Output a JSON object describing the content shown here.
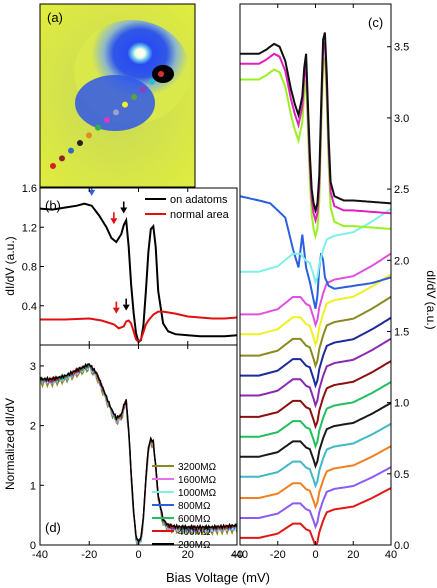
{
  "figure": {
    "shared_xlabel": "Bias Voltage (mV)",
    "shared_xticks": [
      "-40",
      "-20",
      "0",
      "20",
      "40"
    ]
  },
  "chart_data": [
    {
      "panel": "(a)",
      "type": "heatmap",
      "description_colors": {
        "background": "#d9e84a",
        "ring": "#2a4bf0",
        "center": "#ffffff",
        "core": "#000000"
      },
      "marker_colors": [
        "#d6201f",
        "#8b2525",
        "#2f6bc4",
        "#222222",
        "#e08a1f",
        "#2fb14a",
        "#d938c6",
        "#a0a0d0",
        "#f0f030",
        "#5f9f3f",
        "#9a3ab8",
        "#28c0c8",
        "#e03030"
      ]
    },
    {
      "panel": "(b)",
      "type": "line",
      "xlabel": "",
      "ylabel": "dI/dV (a.u.)",
      "xlim": [
        -40,
        40
      ],
      "ylim": [
        0.0,
        1.6
      ],
      "yticks": [
        "0.4",
        "0.8",
        "1.2",
        "1.6"
      ],
      "legend": "top-right",
      "series": [
        {
          "name": "on adatoms",
          "color": "#000000",
          "x": [
            -40,
            -35,
            -30,
            -25,
            -22,
            -19,
            -16,
            -13,
            -11,
            -9,
            -7,
            -6,
            -5,
            -4,
            -3,
            -2,
            -1,
            0,
            1,
            2,
            3,
            4,
            5,
            6,
            7,
            8,
            10,
            12,
            15,
            20,
            25,
            30,
            35,
            40
          ],
          "y": [
            1.39,
            1.38,
            1.4,
            1.42,
            1.44,
            1.42,
            1.32,
            1.2,
            1.09,
            1.05,
            1.13,
            1.22,
            1.27,
            1.0,
            0.62,
            0.33,
            0.12,
            0.03,
            0.05,
            0.2,
            0.55,
            0.95,
            1.18,
            1.21,
            1.0,
            0.55,
            0.22,
            0.14,
            0.11,
            0.1,
            0.09,
            0.09,
            0.09,
            0.1
          ]
        },
        {
          "name": "normal area",
          "color": "#e01010",
          "x": [
            -40,
            -30,
            -20,
            -15,
            -10,
            -8,
            -6,
            -5,
            -4,
            -3,
            -2,
            -1,
            0,
            1,
            2,
            3,
            4,
            6,
            8,
            10,
            15,
            20,
            25,
            30,
            35,
            40
          ],
          "y": [
            0.26,
            0.26,
            0.27,
            0.25,
            0.21,
            0.17,
            0.19,
            0.24,
            0.25,
            0.22,
            0.14,
            0.06,
            0.03,
            0.06,
            0.13,
            0.21,
            0.25,
            0.31,
            0.34,
            0.34,
            0.32,
            0.29,
            0.28,
            0.27,
            0.27,
            0.28
          ]
        }
      ],
      "annotations": [
        {
          "kind": "arrow",
          "color": "#2a5fe0",
          "x": -19,
          "y": 1.52
        },
        {
          "kind": "arrow",
          "color": "#000000",
          "x": -6,
          "y": 1.34
        },
        {
          "kind": "arrow",
          "color": "#e01010",
          "x": -10,
          "y": 1.23
        },
        {
          "kind": "arrow",
          "color": "#e01010",
          "x": -9,
          "y": 0.32
        },
        {
          "kind": "arrow",
          "color": "#000000",
          "x": -5,
          "y": 0.35
        }
      ]
    },
    {
      "panel": "(c)",
      "type": "line",
      "xlabel": "",
      "ylabel": "dI/dV (a.u.)",
      "xlim": [
        -40,
        40
      ],
      "ylim": [
        0.0,
        3.8
      ],
      "yticks": [
        "0.0",
        "0.5",
        "1.0",
        "1.5",
        "2.0",
        "2.5",
        "3.0",
        "3.5"
      ],
      "series": [
        {
          "color": "#e01818",
          "offset": 0.05,
          "shape": "normal"
        },
        {
          "color": "#8a5cf0",
          "offset": 0.19,
          "shape": "normal"
        },
        {
          "color": "#f08020",
          "offset": 0.33,
          "shape": "normal"
        },
        {
          "color": "#40b8c8",
          "offset": 0.48,
          "shape": "normal"
        },
        {
          "color": "#1a1a1a",
          "offset": 0.62,
          "shape": "normal"
        },
        {
          "color": "#20c060",
          "offset": 0.76,
          "shape": "normal"
        },
        {
          "color": "#8c1010",
          "offset": 0.9,
          "shape": "normal"
        },
        {
          "color": "#8a2ab0",
          "offset": 1.05,
          "shape": "normal"
        },
        {
          "color": "#1e2a9a",
          "offset": 1.19,
          "shape": "normal"
        },
        {
          "color": "#8a8a20",
          "offset": 1.33,
          "shape": "normal"
        },
        {
          "color": "#f0f020",
          "offset": 1.48,
          "shape": "normal"
        },
        {
          "color": "#e050e0",
          "offset": 1.62,
          "shape": "normal"
        },
        {
          "color": "#2a5fe0",
          "offset": 1.9,
          "shape": "blue"
        },
        {
          "color": "#7ff0e6",
          "offset": 1.92,
          "shape": "normal"
        },
        {
          "color": "#9af020",
          "offset": 2.22,
          "shape": "adatom"
        },
        {
          "color": "#e020c0",
          "offset": 2.33,
          "shape": "adatom"
        },
        {
          "color": "#101010",
          "offset": 2.4,
          "shape": "adatom"
        }
      ]
    },
    {
      "panel": "(d)",
      "type": "line",
      "xlabel": "Bias Voltage (mV)",
      "ylabel": "Normalized dI/dV",
      "xlim": [
        -40,
        40
      ],
      "ylim": [
        0,
        3.35
      ],
      "yticks": [
        "0",
        "1",
        "2",
        "3"
      ],
      "legend": "right",
      "series": [
        {
          "name": "3200MΩ",
          "color": "#8a8a20"
        },
        {
          "name": "1600MΩ",
          "color": "#e870f0"
        },
        {
          "name": "1000MΩ",
          "color": "#7ff0e6"
        },
        {
          "name": "800MΩ",
          "color": "#2a5fe0"
        },
        {
          "name": "600MΩ",
          "color": "#20c060"
        },
        {
          "name": "400MΩ",
          "color": "#e01010"
        },
        {
          "name": "200MΩ",
          "color": "#000000"
        }
      ],
      "base_curve": {
        "x": [
          -40,
          -35,
          -30,
          -25,
          -20,
          -17,
          -14,
          -11,
          -9,
          -7,
          -6,
          -5,
          -4,
          -3,
          -2,
          -1,
          0,
          1,
          2,
          3,
          4,
          5,
          6,
          7,
          8,
          10,
          12,
          15,
          20,
          25,
          30,
          35,
          40
        ],
        "y": [
          2.75,
          2.75,
          2.8,
          2.9,
          3.0,
          2.85,
          2.55,
          2.25,
          2.1,
          2.15,
          2.3,
          2.4,
          1.9,
          1.2,
          0.55,
          0.12,
          0.03,
          0.1,
          0.45,
          1.1,
          1.6,
          1.75,
          1.7,
          1.3,
          0.8,
          0.4,
          0.3,
          0.28,
          0.27,
          0.27,
          0.27,
          0.28,
          0.3
        ]
      }
    }
  ]
}
